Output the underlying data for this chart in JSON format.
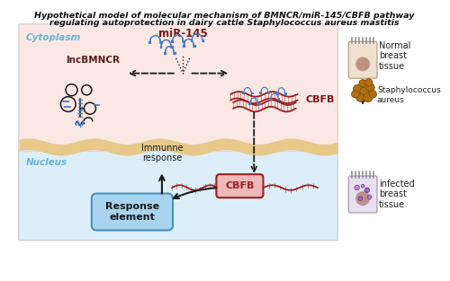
{
  "title_line1": "Hypothetical model of molecular mechanism of BMNCR/miR-145/CBFB pathway",
  "title_line2": "regulating autoprotection in dairy cattle Staphylococcus aureus mastitis",
  "cytoplasm_label": "Cytoplasm",
  "nucleus_label": "Nucleus",
  "mir145_label": "miR-145",
  "lncbmncr_label": "lncBMNCR",
  "cbfb_label_cyto": "CBFB",
  "cbfb_label_nuc": "CBFB",
  "immune_label": "Immunne\nresponse",
  "response_label": "Response\nelement",
  "normal_tissue_label": "Normal\nbreast\ntissue",
  "staph_label": "Staphylococcus\naureus",
  "infected_label": "infected\nbreast\ntissue",
  "bg_color": "#ffffff",
  "cytoplasm_color": "#fbe8e4",
  "nucleus_color": "#ddeef8",
  "membrane_color": "#e8c98a",
  "title_color": "#111111",
  "cytoplasm_text_color": "#6ab4d5",
  "nucleus_text_color": "#6ab4d5",
  "mir145_color": "#7a1515",
  "lncbmncr_color": "#5c1a1a",
  "cbfb_cyto_color": "#7a1515",
  "arrow_color": "#1a1a1a",
  "rna_color": "#9b2020",
  "mir_shape_color": "#4a7fc0",
  "response_box_fill": "#a8d4f0",
  "response_box_edge": "#4a90c0",
  "cbfb_box_fill": "#f0b8b8",
  "cbfb_box_edge": "#9b2020",
  "staph_color": "#b07010",
  "normal_cell_fill": "#f0e0d0",
  "normal_cell_edge": "#c0a890",
  "infected_cell_fill": "#e8e0f0",
  "infected_cell_edge": "#b0a0c0",
  "nucleus_circle_color": "#c09080"
}
